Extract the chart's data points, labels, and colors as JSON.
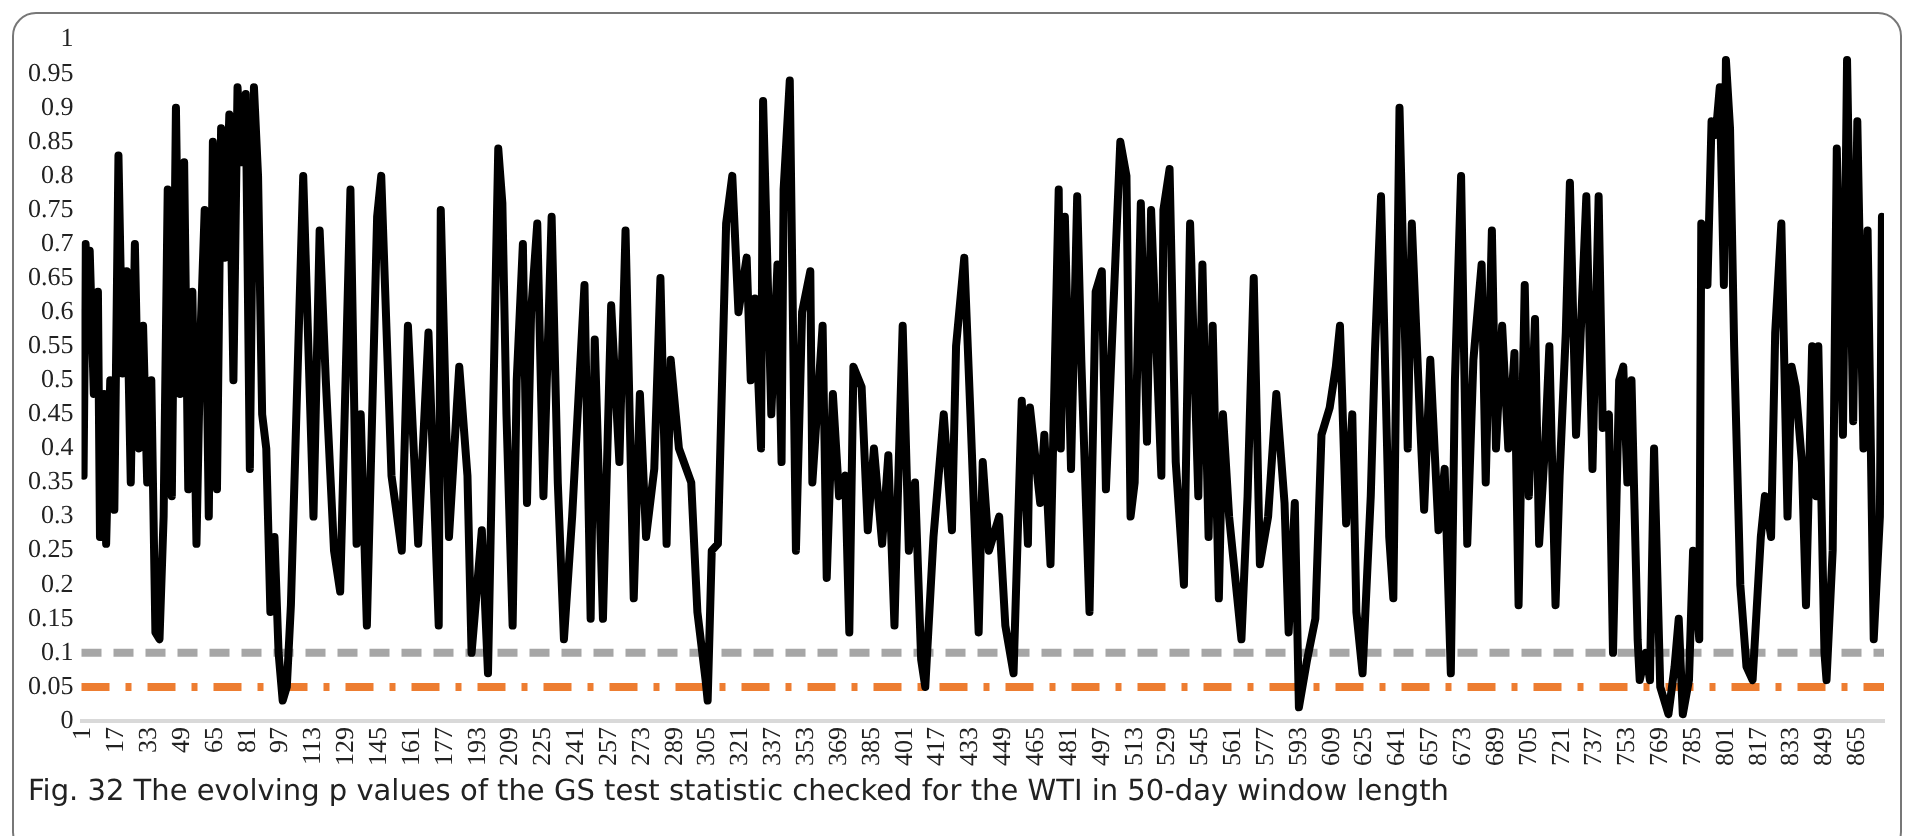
{
  "chart_data": {
    "type": "line",
    "title": "Fig. 32  The evolving p values of the GS test statistic checked for the WTI in 50-day window length",
    "x": [
      1,
      2,
      3,
      4,
      6,
      8,
      9,
      11,
      12,
      14,
      16,
      18,
      20,
      22,
      24,
      26,
      28,
      30,
      32,
      34,
      36,
      38,
      40,
      42,
      44,
      46,
      48,
      50,
      52,
      54,
      56,
      58,
      60,
      62,
      64,
      66,
      68,
      70,
      72,
      74,
      76,
      78,
      80,
      82,
      84,
      86,
      88,
      90,
      92,
      94,
      96,
      98,
      100,
      102,
      108,
      113,
      116,
      119,
      123,
      126,
      131,
      134,
      136,
      139,
      144,
      146,
      151,
      156,
      159,
      164,
      169,
      174,
      175,
      179,
      184,
      188,
      190,
      195,
      198,
      203,
      205,
      207,
      210,
      212,
      215,
      217,
      219,
      222,
      225,
      229,
      232,
      235,
      239,
      245,
      248,
      250,
      254,
      258,
      262,
      265,
      269,
      272,
      275,
      279,
      282,
      285,
      287,
      291,
      297,
      300,
      304,
      305,
      307,
      310,
      314,
      317,
      320,
      324,
      326,
      328,
      331,
      332,
      336,
      339,
      341,
      342,
      345,
      348,
      351,
      355,
      356,
      361,
      363,
      366,
      369,
      372,
      374,
      376,
      380,
      383,
      386,
      390,
      393,
      396,
      398,
      400,
      403,
      406,
      409,
      411,
      415,
      420,
      424,
      426,
      430,
      433,
      437,
      439,
      442,
      447,
      450,
      454,
      458,
      461,
      462,
      467,
      469,
      472,
      476,
      477,
      479,
      482,
      485,
      487,
      491,
      494,
      497,
      499,
      502,
      506,
      509,
      511,
      513,
      516,
      519,
      521,
      526,
      527,
      530,
      533,
      537,
      540,
      544,
      546,
      549,
      551,
      554,
      556,
      559,
      562,
      565,
      568,
      571,
      574,
      578,
      582,
      586,
      588,
      591,
      593,
      597,
      601,
      604,
      608,
      611,
      613,
      616,
      619,
      621,
      624,
      628,
      630,
      633,
      637,
      639,
      642,
      646,
      648,
      652,
      654,
      657,
      661,
      664,
      667,
      669,
      672,
      675,
      678,
      682,
      684,
      687,
      689,
      692,
      695,
      698,
      700,
      703,
      705,
      708,
      710,
      713,
      715,
      718,
      720,
      723,
      725,
      728,
      730,
      733,
      736,
      739,
      741,
      744,
      746,
      749,
      751,
      753,
      755,
      758,
      759,
      762,
      764,
      766,
      769,
      773,
      776,
      778,
      780,
      783,
      785,
      788,
      789,
      792,
      794,
      796,
      798,
      800,
      801,
      803,
      805,
      808,
      811,
      814,
      818,
      820,
      823,
      825,
      828,
      831,
      833,
      835,
      838,
      840,
      843,
      845,
      846,
      849,
      850,
      853,
      855,
      858,
      860,
      863,
      865,
      868,
      870,
      873,
      876,
      877
    ],
    "series": [
      {
        "color": "#000000",
        "values": [
          0.36,
          0.7,
          0.55,
          0.69,
          0.48,
          0.63,
          0.27,
          0.48,
          0.26,
          0.5,
          0.31,
          0.83,
          0.51,
          0.66,
          0.35,
          0.7,
          0.4,
          0.58,
          0.35,
          0.5,
          0.13,
          0.12,
          0.3,
          0.78,
          0.33,
          0.9,
          0.48,
          0.82,
          0.34,
          0.63,
          0.26,
          0.57,
          0.75,
          0.3,
          0.85,
          0.34,
          0.87,
          0.68,
          0.89,
          0.5,
          0.93,
          0.82,
          0.92,
          0.37,
          0.93,
          0.8,
          0.45,
          0.4,
          0.16,
          0.27,
          0.1,
          0.03,
          0.05,
          0.17,
          0.8,
          0.3,
          0.72,
          0.5,
          0.25,
          0.19,
          0.78,
          0.26,
          0.45,
          0.14,
          0.74,
          0.8,
          0.36,
          0.25,
          0.58,
          0.26,
          0.57,
          0.14,
          0.75,
          0.27,
          0.52,
          0.36,
          0.1,
          0.28,
          0.07,
          0.84,
          0.76,
          0.45,
          0.14,
          0.5,
          0.7,
          0.32,
          0.6,
          0.73,
          0.33,
          0.74,
          0.35,
          0.12,
          0.3,
          0.64,
          0.15,
          0.56,
          0.15,
          0.61,
          0.38,
          0.72,
          0.18,
          0.48,
          0.27,
          0.37,
          0.65,
          0.26,
          0.53,
          0.4,
          0.35,
          0.16,
          0.06,
          0.03,
          0.25,
          0.26,
          0.73,
          0.8,
          0.6,
          0.68,
          0.5,
          0.62,
          0.4,
          0.91,
          0.45,
          0.67,
          0.38,
          0.78,
          0.94,
          0.25,
          0.6,
          0.66,
          0.35,
          0.58,
          0.21,
          0.48,
          0.33,
          0.36,
          0.13,
          0.52,
          0.49,
          0.28,
          0.4,
          0.26,
          0.39,
          0.14,
          0.37,
          0.58,
          0.25,
          0.35,
          0.09,
          0.05,
          0.27,
          0.45,
          0.28,
          0.55,
          0.68,
          0.45,
          0.13,
          0.38,
          0.25,
          0.3,
          0.14,
          0.07,
          0.47,
          0.26,
          0.46,
          0.32,
          0.42,
          0.23,
          0.78,
          0.4,
          0.74,
          0.37,
          0.77,
          0.53,
          0.16,
          0.63,
          0.66,
          0.34,
          0.56,
          0.85,
          0.8,
          0.3,
          0.35,
          0.76,
          0.41,
          0.75,
          0.36,
          0.75,
          0.81,
          0.38,
          0.2,
          0.73,
          0.33,
          0.67,
          0.27,
          0.58,
          0.18,
          0.45,
          0.3,
          0.21,
          0.12,
          0.33,
          0.65,
          0.23,
          0.3,
          0.48,
          0.32,
          0.13,
          0.32,
          0.02,
          0.09,
          0.15,
          0.42,
          0.46,
          0.52,
          0.58,
          0.29,
          0.45,
          0.16,
          0.07,
          0.33,
          0.54,
          0.77,
          0.27,
          0.18,
          0.9,
          0.4,
          0.73,
          0.44,
          0.31,
          0.53,
          0.28,
          0.37,
          0.07,
          0.5,
          0.8,
          0.26,
          0.53,
          0.67,
          0.35,
          0.72,
          0.4,
          0.58,
          0.4,
          0.54,
          0.17,
          0.64,
          0.33,
          0.59,
          0.26,
          0.41,
          0.55,
          0.17,
          0.36,
          0.57,
          0.79,
          0.42,
          0.55,
          0.77,
          0.37,
          0.77,
          0.43,
          0.45,
          0.1,
          0.5,
          0.52,
          0.35,
          0.5,
          0.12,
          0.06,
          0.1,
          0.06,
          0.4,
          0.05,
          0.01,
          0.08,
          0.15,
          0.01,
          0.06,
          0.25,
          0.12,
          0.73,
          0.64,
          0.88,
          0.86,
          0.93,
          0.64,
          0.97,
          0.87,
          0.55,
          0.2,
          0.08,
          0.06,
          0.27,
          0.33,
          0.27,
          0.57,
          0.73,
          0.3,
          0.52,
          0.49,
          0.38,
          0.17,
          0.55,
          0.33,
          0.55,
          0.1,
          0.06,
          0.25,
          0.84,
          0.42,
          0.97,
          0.44,
          0.88,
          0.4,
          0.72,
          0.12,
          0.3,
          0.74
        ]
      }
    ],
    "xlim": [
      0,
      878
    ],
    "xticks": [
      1,
      17,
      33,
      49,
      65,
      81,
      97,
      113,
      129,
      145,
      161,
      177,
      193,
      209,
      225,
      241,
      257,
      273,
      289,
      305,
      321,
      337,
      353,
      369,
      385,
      401,
      417,
      433,
      449,
      465,
      481,
      497,
      513,
      529,
      545,
      561,
      577,
      593,
      609,
      625,
      641,
      657,
      673,
      689,
      705,
      721,
      737,
      753,
      769,
      785,
      801,
      817,
      833,
      849,
      865
    ],
    "ylim": [
      0,
      1
    ],
    "yticks": [
      0,
      0.05,
      0.1,
      0.15,
      0.2,
      0.25,
      0.3,
      0.35,
      0.4,
      0.45,
      0.5,
      0.55,
      0.6,
      0.65,
      0.7,
      0.75,
      0.8,
      0.85,
      0.9,
      0.95,
      1
    ],
    "ref_lines": [
      {
        "axis": "y",
        "value": 0.1,
        "color": "#a6a6a6",
        "line_style": "dashed"
      },
      {
        "axis": "y",
        "value": 0.05,
        "color": "#ed7d31",
        "line_style": "dashdot"
      }
    ],
    "grid": false,
    "legend": false,
    "marker": "none",
    "line_style": "solid"
  }
}
